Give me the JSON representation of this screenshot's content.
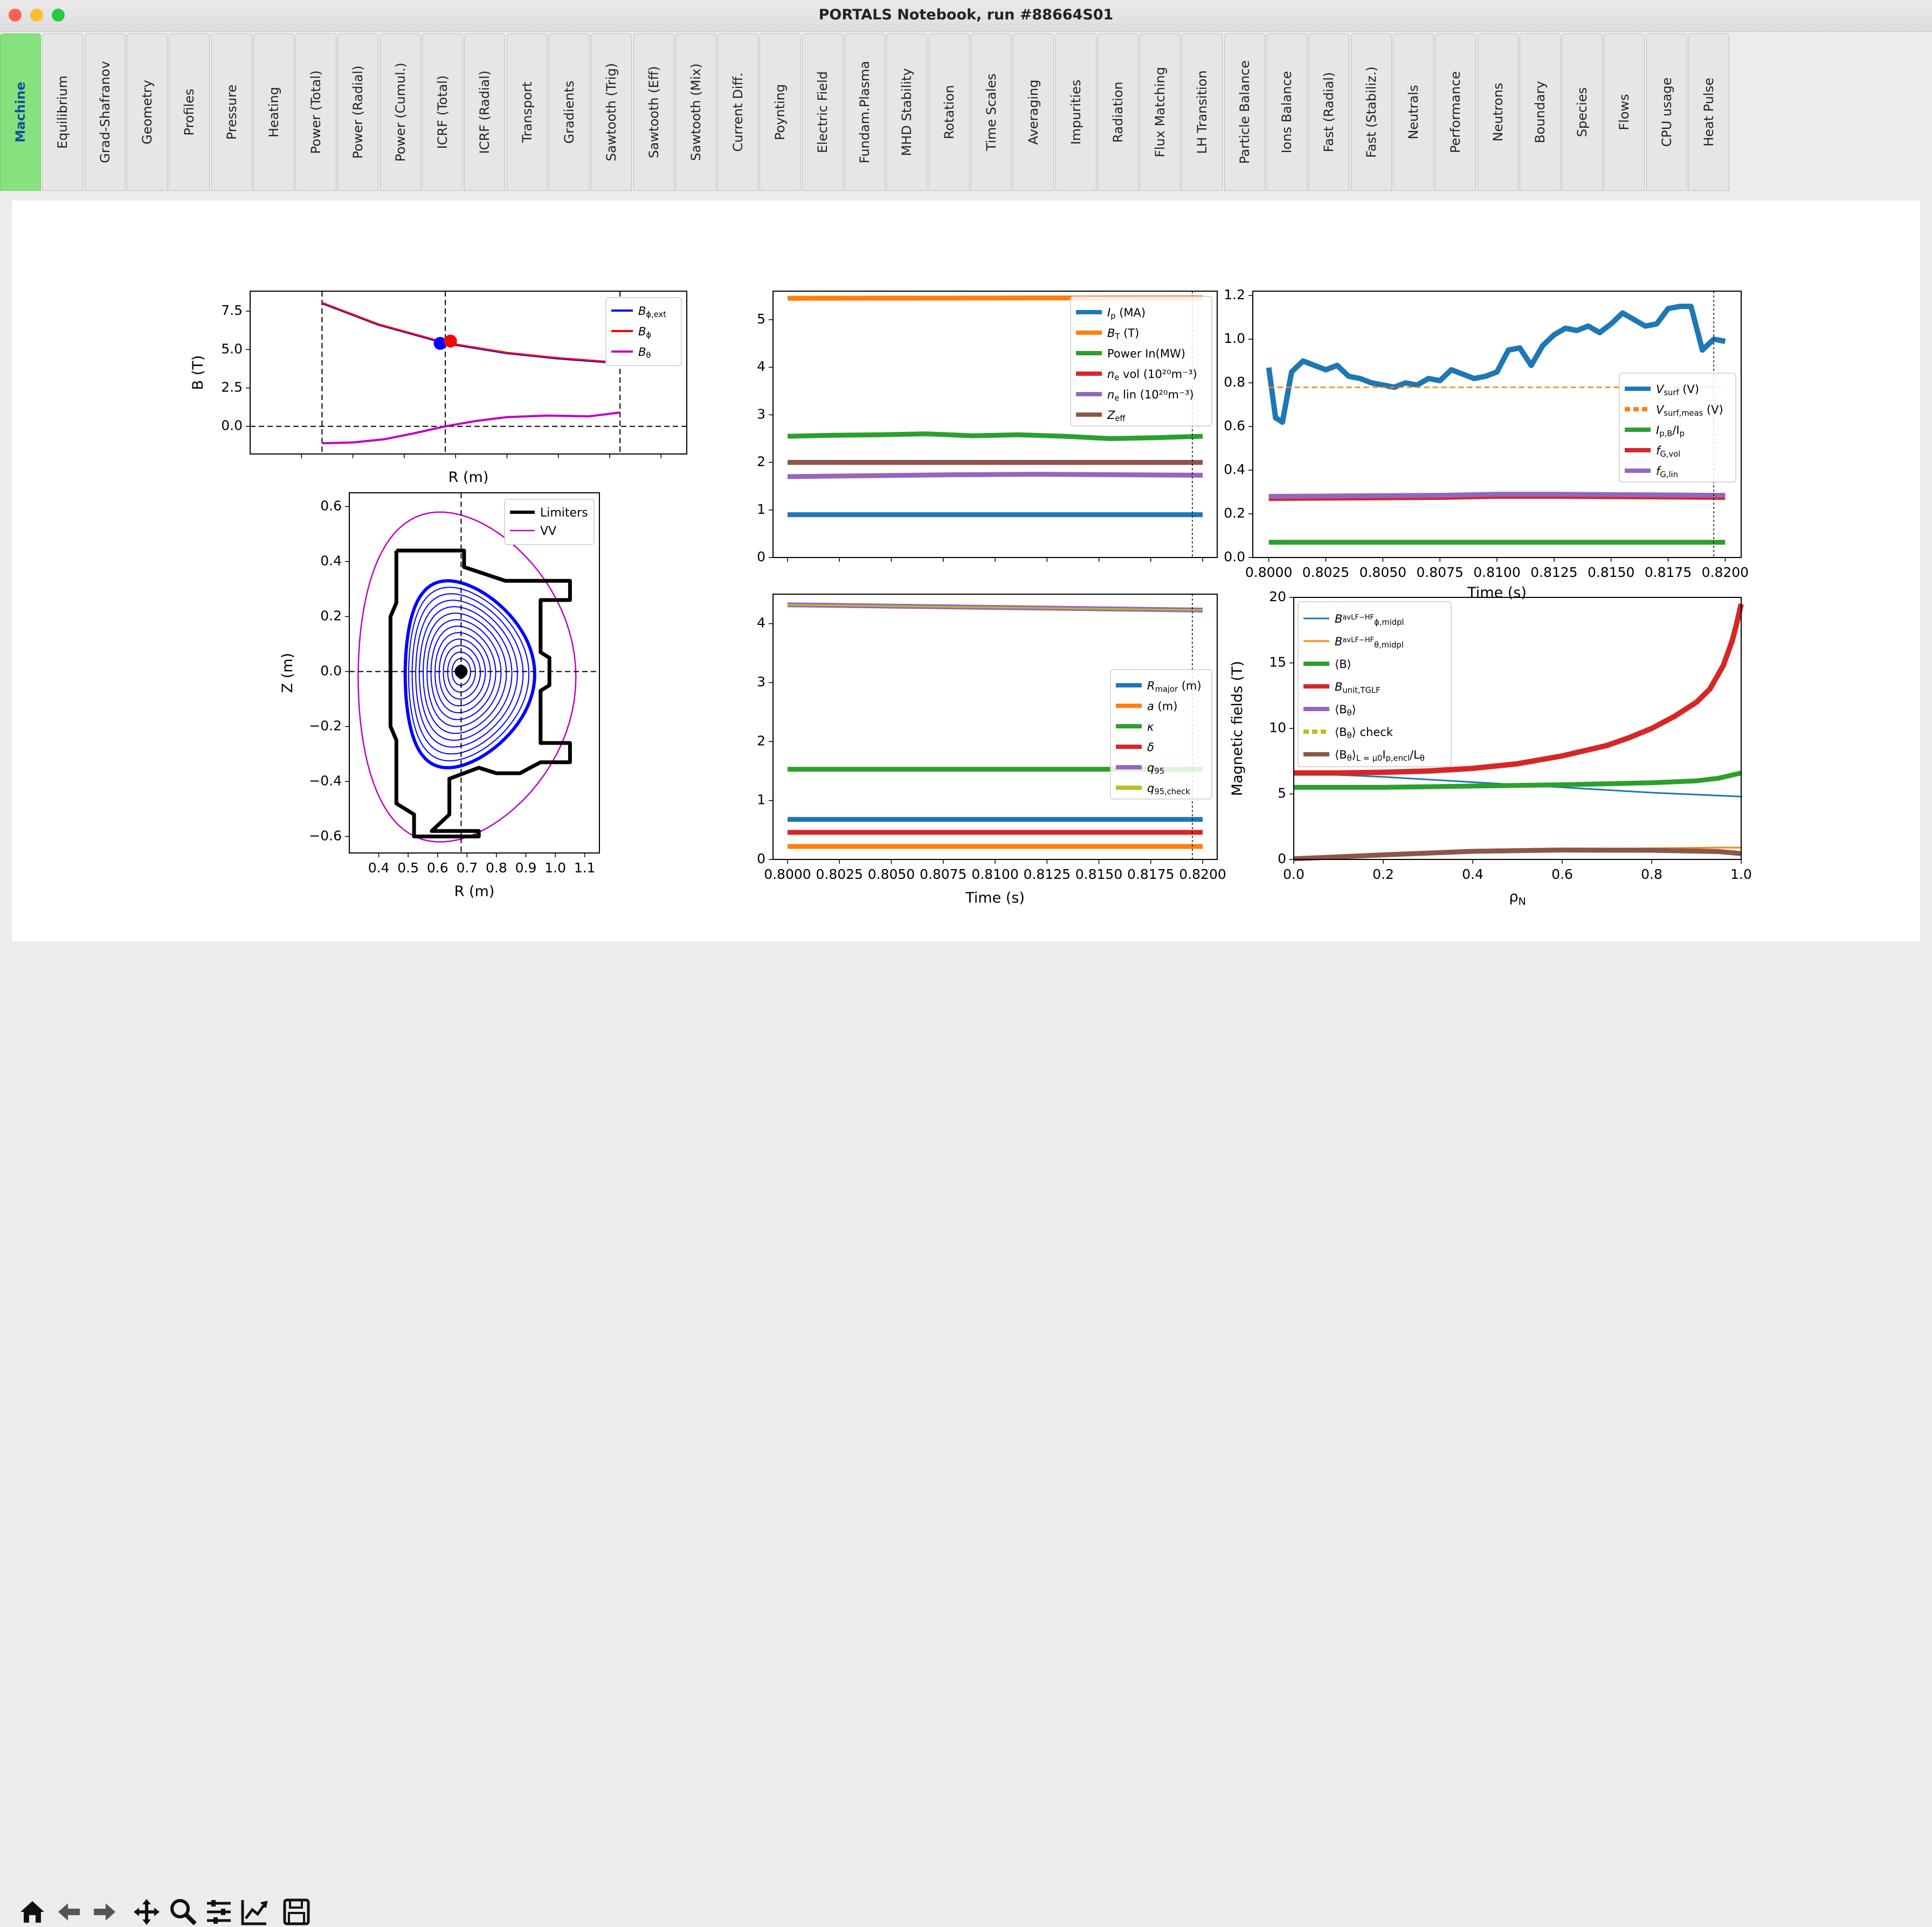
{
  "window": {
    "title": "PORTALS Notebook, run #88664S01"
  },
  "tabs": [
    "Machine",
    "Equilibrium",
    "Grad-Shafranov",
    "Geometry",
    "Profiles",
    "Pressure",
    "Heating",
    "Power (Total)",
    "Power (Radial)",
    "Power (Cumul.)",
    "ICRF (Total)",
    "ICRF (Radial)",
    "Transport",
    "Gradients",
    "Sawtooth (Trig)",
    "Sawtooth (Eff)",
    "Sawtooth (Mix)",
    "Current Diff.",
    "Poynting",
    "Electric Field",
    "Fundam.Plasma",
    "MHD Stability",
    "Rotation",
    "Time Scales",
    "Averaging",
    "Impurities",
    "Radiation",
    "Flux Matching",
    "LH Transition",
    "Particle Balance",
    "Ions Balance",
    "Fast (Radial)",
    "Fast (Stabiliz.)",
    "Neutrals",
    "Performance",
    "Neutrons",
    "Boundary",
    "Species",
    "Flows",
    "CPU usage",
    "Heat Pulse"
  ],
  "active_tab": "Machine",
  "toolbar": {
    "icons": [
      "home-icon",
      "back-arrow-icon",
      "forward-arrow-icon",
      "pan-icon",
      "zoom-icon",
      "configure-subplots-icon",
      "edit-axes-icon",
      "save-icon"
    ]
  },
  "colors": {
    "blue": "#1f77b4",
    "orange": "#ff7f0e",
    "green": "#2ca02c",
    "red": "#d62728",
    "purple": "#9467bd",
    "brown": "#8c564b",
    "olive": "#bcbd22",
    "magenta": "#c000c0"
  },
  "chart_data": [
    {
      "type": "line",
      "id": "b-field-vs-r",
      "ylabel": "B (T)",
      "xlabel": "R (m)",
      "xlim": [
        0.3,
        1.15
      ],
      "ylim": [
        -1.8,
        8.8
      ],
      "yticks": [
        "0.0",
        "2.5",
        "5.0",
        "7.5"
      ],
      "series": [
        {
          "name": "$B_{\\phi,ext}$",
          "label_main": "B",
          "label_sub": "ϕ,ext",
          "color": "#0000ff",
          "x": [
            0.44,
            0.55,
            0.68,
            0.8,
            0.9,
            1.02
          ],
          "y": [
            8.0,
            6.6,
            5.4,
            4.75,
            4.4,
            4.1
          ]
        },
        {
          "name": "$B_\\phi$",
          "label_main": "B",
          "label_sub": "ϕ",
          "color": "#ff0000",
          "x": [
            0.44,
            0.55,
            0.68,
            0.8,
            0.9,
            1.02
          ],
          "y": [
            8.05,
            6.65,
            5.45,
            4.8,
            4.45,
            4.15
          ]
        },
        {
          "name": "$B_\\theta$",
          "label_main": "B",
          "label_sub": "θ",
          "color": "#c000c0",
          "x": [
            0.44,
            0.5,
            0.56,
            0.62,
            0.68,
            0.74,
            0.8,
            0.88,
            0.96,
            1.02
          ],
          "y": [
            -1.1,
            -1.05,
            -0.85,
            -0.45,
            0.0,
            0.35,
            0.6,
            0.7,
            0.65,
            0.9
          ]
        }
      ],
      "markers": [
        {
          "x": 0.67,
          "y": 5.4,
          "color": "#0000ff"
        },
        {
          "x": 0.69,
          "y": 5.55,
          "color": "#ff0000"
        }
      ],
      "vlines": [
        0.44,
        0.68,
        1.02
      ],
      "hline": 0.0
    },
    {
      "type": "line",
      "id": "flux-surfaces",
      "ylabel": "Z (m)",
      "xlabel": "R (m)",
      "xlim": [
        0.3,
        1.15
      ],
      "ylim": [
        -0.66,
        0.65
      ],
      "xticks": [
        "0.4",
        "0.5",
        "0.6",
        "0.7",
        "0.8",
        "0.9",
        "1.0",
        "1.1"
      ],
      "yticks": [
        "−0.6",
        "−0.4",
        "−0.2",
        "0.0",
        "0.2",
        "0.4",
        "0.6"
      ],
      "legend": [
        {
          "name": "Limiters",
          "color": "#000000"
        },
        {
          "name": "VV",
          "color": "#c000c0"
        }
      ],
      "magnetic_axis": {
        "x": 0.68,
        "y": 0.0
      }
    },
    {
      "type": "line",
      "id": "time-traces-1",
      "xlim": [
        0.7993,
        0.8207
      ],
      "ylim": [
        0,
        5.6
      ],
      "yticks": [
        "0",
        "1",
        "2",
        "3",
        "4",
        "5"
      ],
      "series": [
        {
          "name": "$I_p$ (MA)",
          "label_main": "I",
          "label_sub": "p",
          "label_tail": " (MA)",
          "color": "#1f77b4",
          "y": [
            0.9,
            0.9
          ]
        },
        {
          "name": "$B_T$ (T)",
          "label_main": "B",
          "label_sub": "T",
          "label_tail": " (T)",
          "color": "#ff7f0e",
          "y": [
            5.45,
            5.46
          ]
        },
        {
          "name": "Power In(MW)",
          "label_main": "Power In(MW)",
          "color": "#2ca02c",
          "y": [
            2.55,
            2.57,
            2.58,
            2.6,
            2.56,
            2.58,
            2.55,
            2.5,
            2.52,
            2.55
          ]
        },
        {
          "name": "$n_e$ vol ($10^{20}m^{-3}$)",
          "label_main": "n",
          "label_sub": "e",
          "label_tail": " vol (10²⁰m⁻³)",
          "color": "#d62728",
          "y": [
            2.0,
            2.0
          ]
        },
        {
          "name": "$n_e$ lin ($10^{20}m^{-3}$)",
          "label_main": "n",
          "label_sub": "e",
          "label_tail": " lin (10²⁰m⁻³)",
          "color": "#9467bd",
          "y": [
            1.7,
            1.72,
            1.74,
            1.75,
            1.74,
            1.73
          ]
        },
        {
          "name": "$Z_{eff}$",
          "label_main": "Z",
          "label_sub": "eff",
          "color": "#8c564b",
          "y": [
            2.0,
            2.0
          ]
        }
      ],
      "vline": 0.8195
    },
    {
      "type": "line",
      "id": "voltage-traces",
      "xlabel": "Time (s)",
      "xlim": [
        0.7993,
        0.8207
      ],
      "ylim": [
        0,
        1.22
      ],
      "xticks": [
        "0.8000",
        "0.8025",
        "0.8050",
        "0.8075",
        "0.8100",
        "0.8125",
        "0.8150",
        "0.8175",
        "0.8200"
      ],
      "yticks": [
        "0.0",
        "0.2",
        "0.4",
        "0.6",
        "0.8",
        "1.0",
        "1.2"
      ],
      "series": [
        {
          "name": "$V_{surf}$ (V)",
          "label_main": "V",
          "label_sub": "surf",
          "label_tail": " (V)",
          "color": "#1f77b4",
          "x": [
            0.8,
            0.8003,
            0.8006,
            0.801,
            0.8015,
            0.802,
            0.8025,
            0.803,
            0.8035,
            0.804,
            0.8045,
            0.805,
            0.8055,
            0.806,
            0.8065,
            0.807,
            0.8075,
            0.808,
            0.8085,
            0.809,
            0.8095,
            0.81,
            0.8105,
            0.811,
            0.8115,
            0.812,
            0.8125,
            0.813,
            0.8135,
            0.814,
            0.8145,
            0.815,
            0.8155,
            0.816,
            0.8165,
            0.817,
            0.8175,
            0.818,
            0.8185,
            0.819,
            0.8195,
            0.82
          ],
          "y": [
            0.87,
            0.64,
            0.62,
            0.85,
            0.9,
            0.88,
            0.86,
            0.88,
            0.83,
            0.82,
            0.8,
            0.79,
            0.78,
            0.8,
            0.79,
            0.82,
            0.81,
            0.86,
            0.84,
            0.82,
            0.83,
            0.85,
            0.95,
            0.96,
            0.88,
            0.97,
            1.02,
            1.05,
            1.04,
            1.06,
            1.03,
            1.07,
            1.12,
            1.09,
            1.06,
            1.07,
            1.14,
            1.15,
            1.15,
            0.95,
            1.0,
            0.99
          ]
        },
        {
          "name": "$V_{surf,meas}$ (V)",
          "label_main": "V",
          "label_sub": "surf,meas",
          "label_tail": " (V)",
          "color": "#ff7f0e",
          "dashed": true,
          "x": [
            0.8,
            0.82
          ],
          "y": [
            0.78,
            0.78
          ]
        },
        {
          "name": "$I_{p,B}/I_p$",
          "label_main": "I",
          "label_sub": "p,B",
          "label_tail": "/I",
          "label_sub2": "p",
          "color": "#2ca02c",
          "x": [
            0.8,
            0.82
          ],
          "y": [
            0.07,
            0.07
          ]
        },
        {
          "name": "$f_{G,vol}$",
          "label_main": "f",
          "label_sub": "G,vol",
          "color": "#d62728",
          "x": [
            0.8,
            0.8075,
            0.81,
            0.8125,
            0.82
          ],
          "y": [
            0.27,
            0.275,
            0.28,
            0.28,
            0.275
          ]
        },
        {
          "name": "$f_{G,lin}$",
          "label_main": "f",
          "label_sub": "G,lin",
          "color": "#9467bd",
          "x": [
            0.8,
            0.8075,
            0.81,
            0.8125,
            0.82
          ],
          "y": [
            0.28,
            0.285,
            0.29,
            0.29,
            0.285
          ]
        }
      ],
      "vline": 0.8195
    },
    {
      "type": "line",
      "id": "shape-traces",
      "xlabel": "Time (s)",
      "xlim": [
        0.7993,
        0.8207
      ],
      "ylim": [
        0,
        4.5
      ],
      "xticks": [
        "0.8000",
        "0.8025",
        "0.8050",
        "0.8075",
        "0.8100",
        "0.8125",
        "0.8150",
        "0.8175",
        "0.8200"
      ],
      "yticks": [
        "0",
        "1",
        "2",
        "3",
        "4"
      ],
      "series": [
        {
          "name": "$R_{major}$ (m)",
          "label_main": "R",
          "label_sub": "major",
          "label_tail": " (m)",
          "color": "#1f77b4",
          "y": [
            0.68,
            0.68
          ]
        },
        {
          "name": "$a$ (m)",
          "label_main": "a",
          "label_tail": " (m)",
          "color": "#ff7f0e",
          "y": [
            0.22,
            0.22
          ]
        },
        {
          "name": "$\\kappa$",
          "label_main": "κ",
          "color": "#2ca02c",
          "y": [
            1.53,
            1.53
          ]
        },
        {
          "name": "$\\delta$",
          "label_main": "δ",
          "color": "#d62728",
          "y": [
            0.46,
            0.46
          ]
        },
        {
          "name": "$q_{95}$",
          "label_main": "q",
          "label_sub": "95",
          "color": "#9467bd",
          "y": [
            4.32,
            4.23
          ]
        },
        {
          "name": "$q_{95,check}$",
          "label_main": "q",
          "label_sub": "95,check",
          "color": "#bcbd22",
          "y": [
            4.32,
            4.23
          ]
        }
      ],
      "vline": 0.8195
    },
    {
      "type": "line",
      "id": "magnetic-fields-vs-rho",
      "xlabel": "ρN",
      "ylabel": "Magnetic fields (T)",
      "xlim": [
        0,
        1
      ],
      "ylim": [
        0,
        20
      ],
      "xticks": [
        "0.0",
        "0.2",
        "0.4",
        "0.6",
        "0.8",
        "1.0"
      ],
      "yticks": [
        "0",
        "5",
        "10",
        "15",
        "20"
      ],
      "series": [
        {
          "name": "$B_{\\phi,midpl}^{avLF-HF}$",
          "label_main": "B",
          "label_sub": "ϕ,midpl",
          "label_sup": "avLF−HF",
          "color": "#1f77b4",
          "thin": true,
          "x": [
            0,
            0.2,
            0.4,
            0.6,
            0.8,
            1.0
          ],
          "y": [
            6.6,
            6.3,
            5.9,
            5.5,
            5.1,
            4.8
          ]
        },
        {
          "name": "$B_{\\theta,midpl}^{avLF-HF}$",
          "label_main": "B",
          "label_sub": "θ,midpl",
          "label_sup": "avLF−HF",
          "color": "#ff7f0e",
          "thin": true,
          "x": [
            0,
            0.2,
            0.4,
            0.6,
            0.8,
            0.95,
            1.0
          ],
          "y": [
            0.05,
            0.35,
            0.65,
            0.8,
            0.85,
            0.9,
            0.9
          ]
        },
        {
          "name": "⟨B⟩",
          "label_main": "⟨B⟩",
          "color": "#2ca02c",
          "x": [
            0,
            0.2,
            0.4,
            0.6,
            0.8,
            0.9,
            0.95,
            1.0
          ],
          "y": [
            5.5,
            5.5,
            5.6,
            5.7,
            5.85,
            6.0,
            6.2,
            6.6
          ]
        },
        {
          "name": "$B_{unit,TGLF}$",
          "label_main": "B",
          "label_sub": "unit,TGLF",
          "color": "#d62728",
          "x": [
            0,
            0.1,
            0.2,
            0.3,
            0.4,
            0.5,
            0.6,
            0.7,
            0.75,
            0.8,
            0.85,
            0.9,
            0.93,
            0.96,
            0.98,
            0.99,
            1.0
          ],
          "y": [
            6.6,
            6.6,
            6.65,
            6.75,
            6.95,
            7.3,
            7.9,
            8.7,
            9.3,
            10.0,
            10.9,
            12.0,
            13.0,
            14.8,
            16.7,
            18.0,
            19.5
          ]
        },
        {
          "name": "⟨B_θ⟩",
          "label_main": "⟨B",
          "label_sub": "θ",
          "label_tail": "⟩",
          "color": "#9467bd",
          "x": [
            0,
            0.2,
            0.4,
            0.6,
            0.8,
            0.95,
            1.0
          ],
          "y": [
            0.05,
            0.35,
            0.62,
            0.72,
            0.7,
            0.6,
            0.45
          ]
        },
        {
          "name": "⟨B_θ⟩ check",
          "label_main": "⟨B",
          "label_sub": "θ",
          "label_tail": "⟩ check",
          "color": "#bcbd22",
          "dashed": true,
          "x": [
            0,
            0.2,
            0.4,
            0.6,
            0.8,
            0.95,
            1.0
          ],
          "y": [
            0.05,
            0.35,
            0.62,
            0.72,
            0.7,
            0.6,
            0.45
          ]
        },
        {
          "name": "⟨B_θ⟩_L = μ0 I_p,encl / L_θ",
          "label_main": "⟨B",
          "label_sub": "θ",
          "label_tail": "⟩",
          "label_extra": "L = μ",
          "label_sub3": "0",
          "label_tail2": "I",
          "label_sub4": "p,encl",
          "label_tail3": "/L",
          "label_sub5": "θ",
          "color": "#8c564b",
          "x": [
            0,
            0.2,
            0.4,
            0.6,
            0.8,
            0.95,
            1.0
          ],
          "y": [
            0.05,
            0.35,
            0.62,
            0.72,
            0.7,
            0.6,
            0.45
          ]
        }
      ]
    }
  ]
}
